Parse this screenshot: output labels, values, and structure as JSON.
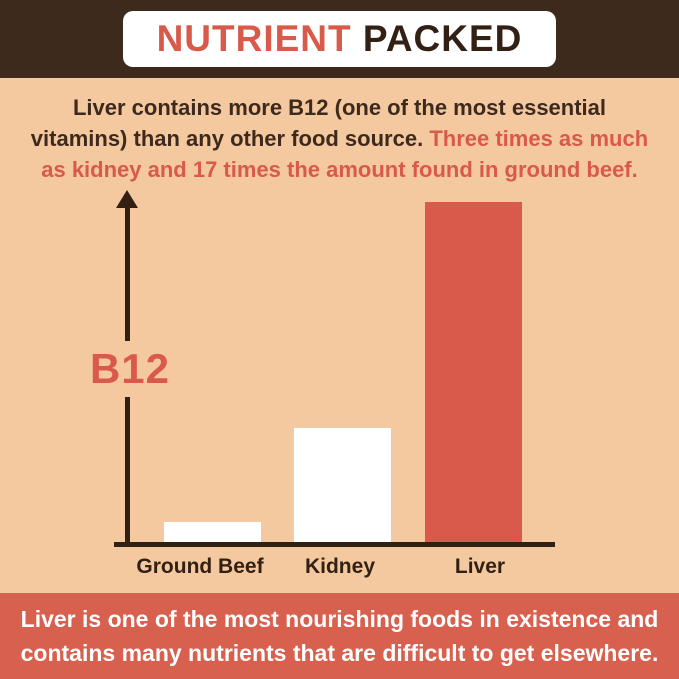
{
  "header": {
    "nutrient": "NUTRIENT",
    "packed": " PACKED"
  },
  "intro": {
    "dark_text": "Liver contains more B12 (one of the most essential vitamins) than any other food source. ",
    "red_text": "Three times as much as kidney and 17 times the amount found in ground beef."
  },
  "chart_data": {
    "type": "bar",
    "categories": [
      "Ground Beef",
      "Kidney",
      "Liver"
    ],
    "values": [
      1,
      5.7,
      17
    ],
    "value_unit": "relative B12 content (times ground beef)",
    "title": "",
    "xlabel": "",
    "ylabel": "B12",
    "ylim": [
      0,
      17
    ],
    "grid": false,
    "legend": false,
    "bar_colors": [
      "#ffffff",
      "#ffffff",
      "#d9594a"
    ]
  },
  "footer": {
    "text": "Liver is one of the most nourishing foods in existence and contains many nutrients that are difficult to get elsewhere."
  },
  "colors": {
    "background_peach": "#f5c9a0",
    "dark_brown": "#3e2a1d",
    "accent_red": "#d9594a",
    "footer_red": "#d8604f",
    "white": "#ffffff"
  }
}
